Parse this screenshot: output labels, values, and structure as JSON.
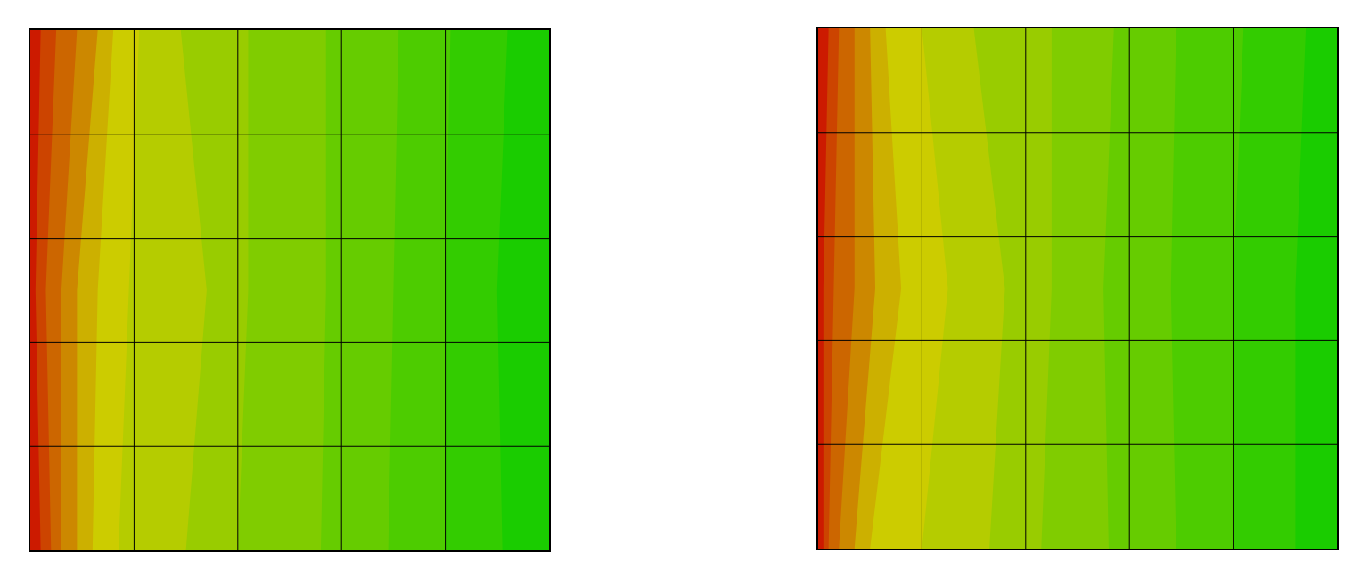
{
  "colors": {
    "background": "#ffffff",
    "grid_line": "#000000",
    "scale": [
      "#cc1a00",
      "#cc4400",
      "#cc6600",
      "#cc8800",
      "#ccb000",
      "#cccc00",
      "#b5cc00",
      "#99cc00",
      "#80cc00",
      "#66cc00",
      "#4dcc00",
      "#33cc00",
      "#1acc00"
    ]
  },
  "panels": [
    {
      "name": "left",
      "rows": 5,
      "cols": 5,
      "bands": [
        {
          "top": 0.0,
          "mid": 0.0,
          "bot": 0.0
        },
        {
          "top": 0.02,
          "mid": 0.01,
          "bot": 0.02
        },
        {
          "top": 0.05,
          "mid": 0.03,
          "bot": 0.04
        },
        {
          "top": 0.09,
          "mid": 0.06,
          "bot": 0.06
        },
        {
          "top": 0.13,
          "mid": 0.09,
          "bot": 0.09
        },
        {
          "top": 0.16,
          "mid": 0.13,
          "bot": 0.12
        },
        {
          "top": 0.21,
          "mid": 0.19,
          "bot": 0.17
        },
        {
          "top": 0.29,
          "mid": 0.34,
          "bot": 0.3
        },
        {
          "top": 0.42,
          "mid": 0.42,
          "bot": 0.4
        },
        {
          "top": 0.57,
          "mid": 0.57,
          "bot": 0.56
        },
        {
          "top": 0.71,
          "mid": 0.7,
          "bot": 0.69
        },
        {
          "top": 0.81,
          "mid": 0.8,
          "bot": 0.8
        },
        {
          "top": 0.92,
          "mid": 0.9,
          "bot": 0.91
        }
      ]
    },
    {
      "name": "right",
      "rows": 5,
      "cols": 5,
      "bands": [
        {
          "top": 0.0,
          "mid": 0.0,
          "bot": 0.0
        },
        {
          "top": 0.02,
          "mid": 0.01,
          "bot": 0.01
        },
        {
          "top": 0.04,
          "mid": 0.03,
          "bot": 0.02
        },
        {
          "top": 0.07,
          "mid": 0.07,
          "bot": 0.04
        },
        {
          "top": 0.1,
          "mid": 0.11,
          "bot": 0.07
        },
        {
          "top": 0.13,
          "mid": 0.16,
          "bot": 0.1
        },
        {
          "top": 0.2,
          "mid": 0.25,
          "bot": 0.2
        },
        {
          "top": 0.3,
          "mid": 0.36,
          "bot": 0.33
        },
        {
          "top": 0.45,
          "mid": 0.45,
          "bot": 0.43
        },
        {
          "top": 0.57,
          "mid": 0.55,
          "bot": 0.56
        },
        {
          "top": 0.69,
          "mid": 0.68,
          "bot": 0.69
        },
        {
          "top": 0.82,
          "mid": 0.8,
          "bot": 0.8
        },
        {
          "top": 0.94,
          "mid": 0.92,
          "bot": 0.92
        }
      ]
    }
  ]
}
